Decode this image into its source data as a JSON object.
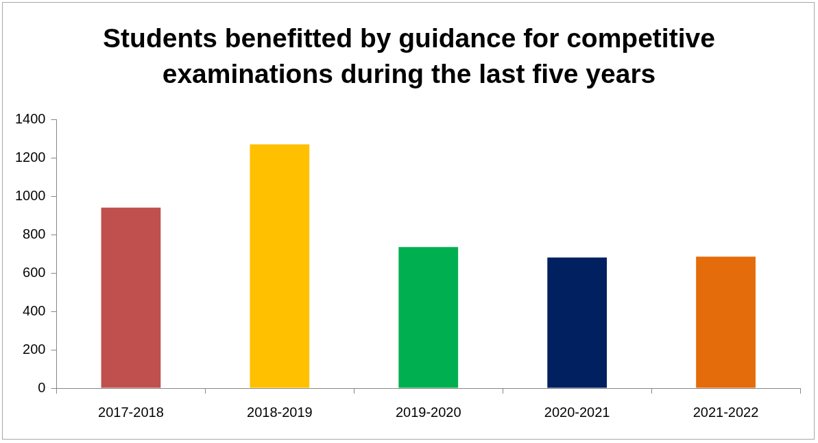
{
  "chart_data": {
    "type": "bar",
    "title": "Students benefitted by guidance for competitive examinations during the last five years",
    "categories": [
      "2017-2018",
      "2018-2019",
      "2019-2020",
      "2020-2021",
      "2021-2022"
    ],
    "values": [
      940,
      1270,
      735,
      680,
      685
    ],
    "colors": [
      "#c0504d",
      "#ffc000",
      "#00b050",
      "#002060",
      "#e46c0a"
    ],
    "ylim": [
      0,
      1400
    ],
    "yticks": [
      0,
      200,
      400,
      600,
      800,
      1000,
      1200,
      1400
    ],
    "grid": false,
    "legend": false
  }
}
